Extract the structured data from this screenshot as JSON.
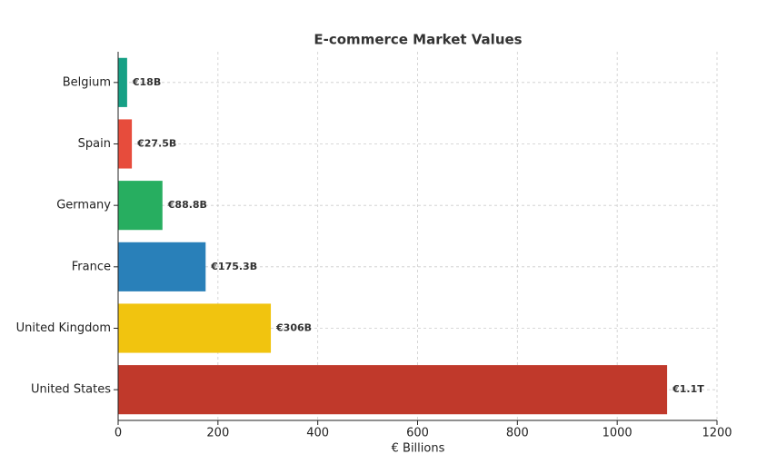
{
  "chart_data": {
    "type": "barh",
    "title": "E-commerce Market Values",
    "xlabel": "€ Billions",
    "categories": [
      "Belgium",
      "Spain",
      "Germany",
      "France",
      "United Kingdom",
      "United States"
    ],
    "values": [
      18,
      27.5,
      88.8,
      175.3,
      306,
      1100
    ],
    "value_labels": [
      "€18B",
      "€27.5B",
      "€88.8B",
      "€175.3B",
      "€306B",
      "€1.1T"
    ],
    "colors": [
      "#16a085",
      "#e74c3c",
      "#27ae60",
      "#2980b9",
      "#f1c40f",
      "#c0392b"
    ],
    "xlim": [
      0,
      1200
    ],
    "xticks": [
      0,
      200,
      400,
      600,
      800,
      1000,
      1200
    ],
    "grid": true
  }
}
